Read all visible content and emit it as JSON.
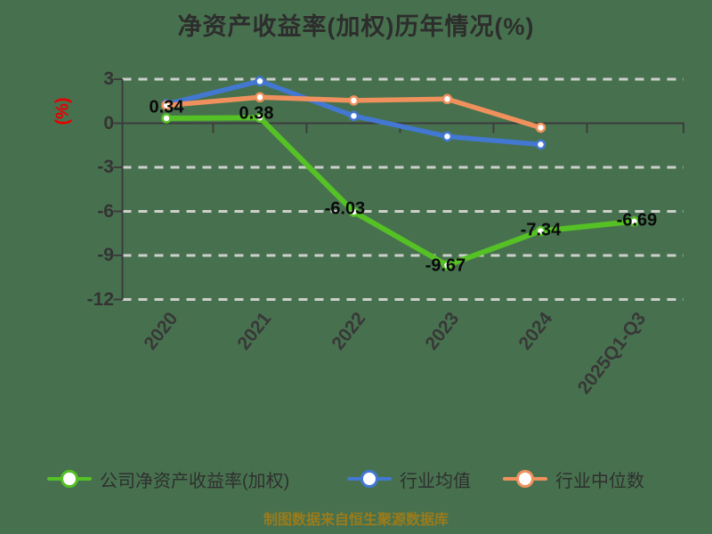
{
  "title": "净资产收益率(加权)历年情况(%)",
  "footer": "制图数据来自恒生聚源数据库",
  "colors": {
    "background": "#47714e",
    "title_text": "#2d2d2d",
    "axis": "#3c3c3c",
    "gridline": "#ccd0cc",
    "tick_text": "#333333",
    "y_axis_label_red": "#e60000",
    "data_label": "#0a0a0a",
    "footer_gold": "#9a7b1c",
    "series_company": "#55c125",
    "series_industry_avg": "#4277d2",
    "series_industry_median": "#f0915d"
  },
  "chart_data": {
    "type": "line",
    "title": "净资产收益率(加权)历年情况(%)",
    "ylabel": "(%)",
    "categories": [
      "2020",
      "2021",
      "2022",
      "2023",
      "2024",
      "2025Q1-Q3"
    ],
    "y_ticks": [
      3,
      0,
      -3,
      -6,
      -9,
      -12
    ],
    "y_tick_labels": [
      "3",
      "0",
      "-3",
      "-6",
      "-9",
      "-12"
    ],
    "ylim": [
      -12,
      3
    ],
    "grid": "horizontal-dashed",
    "legend_position": "bottom",
    "series": [
      {
        "key": "company-roe",
        "name": "公司净资产收益率(加权)",
        "color": "#55c125",
        "values": [
          0.34,
          0.38,
          -6.03,
          -9.67,
          -7.34,
          -6.69
        ],
        "labels": [
          "0.34",
          "0.38",
          "-6.03",
          "-9.67",
          "-7.34",
          "-6.69"
        ]
      },
      {
        "key": "industry-avg",
        "name": "行业均值",
        "color": "#4277d2",
        "values": [
          1.3,
          2.87,
          0.5,
          -0.9,
          -1.45,
          null
        ],
        "labels": []
      },
      {
        "key": "industry-median",
        "name": "行业中位数",
        "color": "#f0915d",
        "values": [
          1.22,
          1.77,
          1.55,
          1.65,
          -0.3,
          null
        ],
        "labels": []
      }
    ]
  }
}
